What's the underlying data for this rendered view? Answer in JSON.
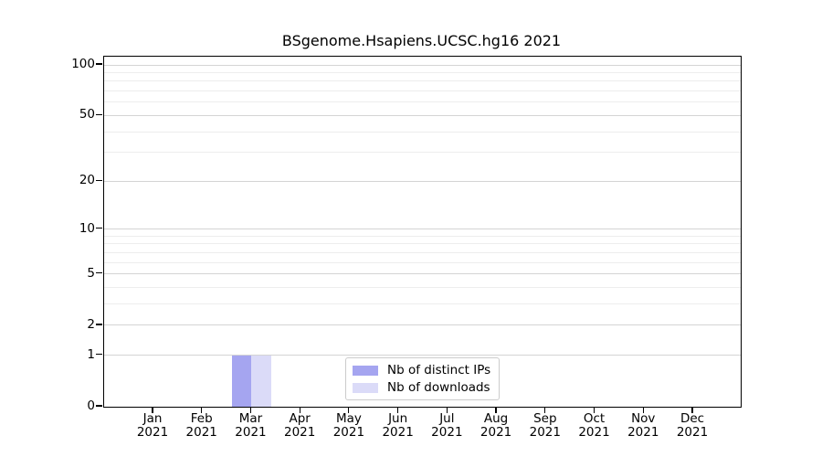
{
  "chart_data": {
    "type": "bar",
    "title": "BSgenome.Hsapiens.UCSC.hg16 2021",
    "categories": [
      "Jan",
      "Feb",
      "Mar",
      "Apr",
      "May",
      "Jun",
      "Jul",
      "Aug",
      "Sep",
      "Oct",
      "Nov",
      "Dec"
    ],
    "category_year": "2021",
    "series": [
      {
        "name": "Nb of distinct IPs",
        "color": "#a5a5f0",
        "values": [
          0,
          0,
          1,
          0,
          0,
          0,
          0,
          0,
          0,
          0,
          0,
          0
        ]
      },
      {
        "name": "Nb of downloads",
        "color": "#dbdbf8",
        "values": [
          0,
          0,
          1,
          0,
          0,
          0,
          0,
          0,
          0,
          0,
          0,
          0
        ]
      }
    ],
    "y_axis": {
      "scale": "log1p",
      "ticks": [
        0,
        1,
        2,
        5,
        10,
        20,
        50,
        100
      ],
      "minor_gridlines": [
        3,
        4,
        6,
        7,
        8,
        9,
        30,
        40,
        60,
        70,
        80,
        90
      ],
      "effective_max": 112
    },
    "legend": {
      "entries": [
        "Nb of distinct IPs",
        "Nb of downloads"
      ],
      "position": "bottom-center"
    },
    "colors": {
      "major_grid": "#d4d4d4",
      "minor_grid": "#ededed",
      "frame": "#000000",
      "background": "#ffffff"
    }
  }
}
